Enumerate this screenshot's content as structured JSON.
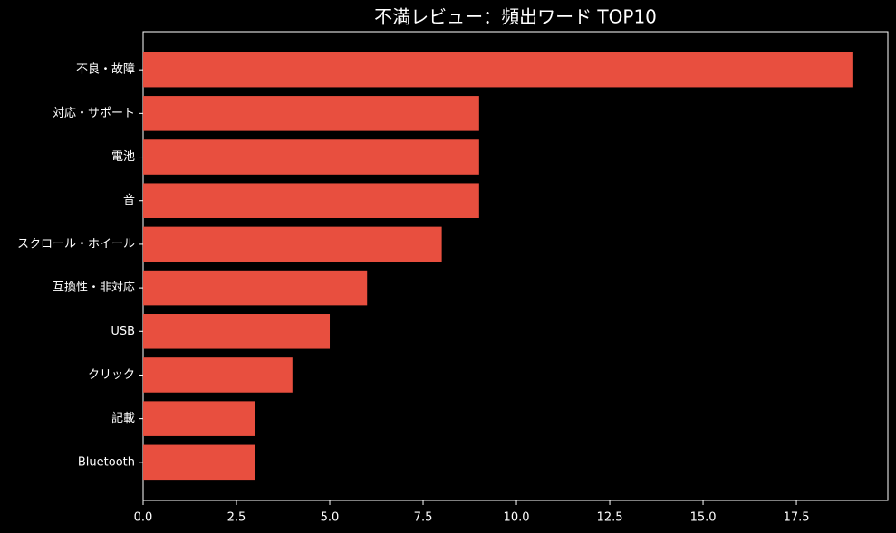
{
  "chart_data": {
    "type": "barh",
    "title": "不満レビュー：頻出ワード TOP10",
    "categories": [
      "不良・故障",
      "対応・サポート",
      "電池",
      "音",
      "スクロール・ホイール",
      "互換性・非対応",
      "USB",
      "クリック",
      "記載",
      "Bluetooth"
    ],
    "values": [
      19,
      9,
      9,
      9,
      8,
      6,
      5,
      4,
      3,
      3
    ],
    "color": "#e84f3f",
    "xlim": [
      0,
      19.95
    ],
    "xticks": [
      {
        "value": 0,
        "label": "0.0"
      },
      {
        "value": 2.5,
        "label": "2.5"
      },
      {
        "value": 5,
        "label": "5.0"
      },
      {
        "value": 7.5,
        "label": "7.5"
      },
      {
        "value": 10,
        "label": "10.0"
      },
      {
        "value": 12.5,
        "label": "12.5"
      },
      {
        "value": 15,
        "label": "15.0"
      },
      {
        "value": 17.5,
        "label": "17.5"
      }
    ]
  }
}
